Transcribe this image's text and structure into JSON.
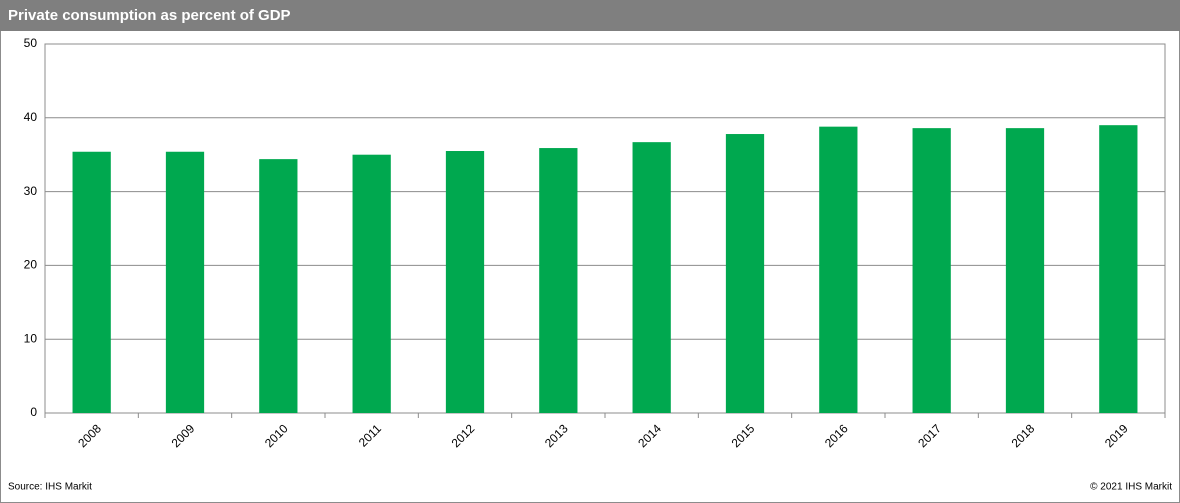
{
  "chart_data": {
    "type": "bar",
    "title": "Private consumption as percent of GDP",
    "categories": [
      "2008",
      "2009",
      "2010",
      "2011",
      "2012",
      "2013",
      "2014",
      "2015",
      "2016",
      "2017",
      "2018",
      "2019"
    ],
    "values": [
      35.4,
      35.4,
      34.4,
      35.0,
      35.5,
      35.9,
      36.7,
      37.8,
      38.8,
      38.6,
      38.6,
      39.0
    ],
    "color": "#00a84f",
    "ylim": [
      0,
      50
    ],
    "yticks": [
      0,
      10,
      20,
      30,
      40,
      50
    ],
    "grid": true,
    "source": "Source: IHS Markit",
    "copyright": "© 2021 IHS Markit"
  }
}
